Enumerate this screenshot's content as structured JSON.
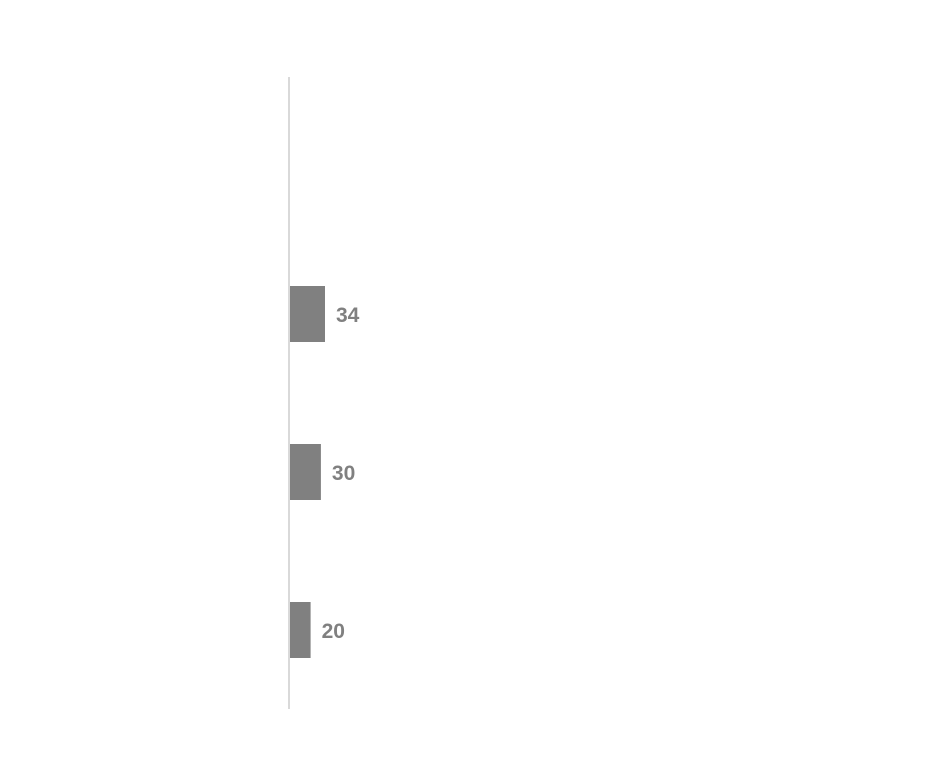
{
  "chart_data": {
    "type": "bar",
    "orientation": "horizontal",
    "categories": [
      "",
      "",
      "",
      ""
    ],
    "values": [
      null,
      34,
      30,
      20
    ],
    "data_labels": [
      "",
      "34",
      "30",
      "20"
    ],
    "xlim": [
      0,
      600
    ],
    "grid": false,
    "legend": "none",
    "colors": {
      "bar": "#808080",
      "label": "#808080",
      "axis": "#d9d9d9"
    }
  }
}
